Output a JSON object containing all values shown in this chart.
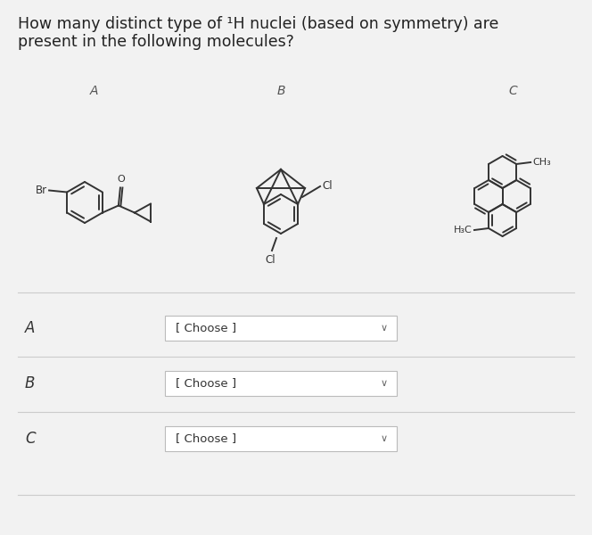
{
  "background_color": "#f2f2f2",
  "title_line1": "How many distinct type of ¹H nuclei (based on symmetry) are",
  "title_line2": "present in the following molecules?",
  "title_fontsize": 12.5,
  "title_color": "#222222",
  "row_labels": [
    "A",
    "B",
    "C"
  ],
  "dropdown_text": "[ Choose ]",
  "dropdown_color": "#ffffff",
  "dropdown_border": "#bbbbbb",
  "dropdown_text_color": "#333333",
  "arrow_color": "#666666",
  "separator_color": "#cccccc",
  "row_label_color": "#333333",
  "row_label_fontsize": 12,
  "bond_color": "#333333",
  "bond_lw": 1.4
}
